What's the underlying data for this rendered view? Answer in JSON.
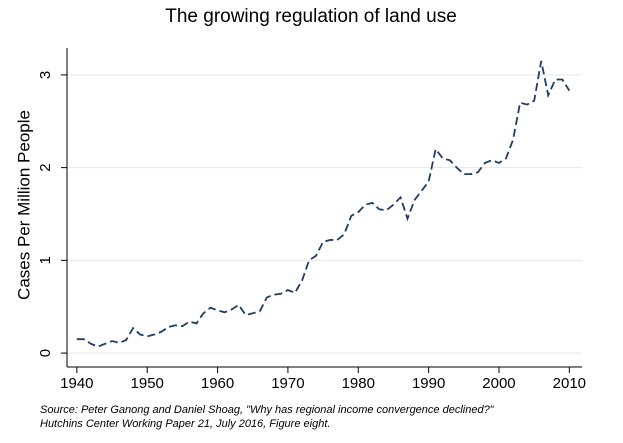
{
  "chart_data": {
    "type": "line",
    "title": "The growing regulation of land use",
    "ylabel": "Cases Per Million People",
    "source": [
      "Source: Peter Ganong and Daniel Shoag, \"Why has regional income convergence declined?\"",
      "Hutchins Center Working Paper 21, July 2016, Figure eight."
    ],
    "x": [
      1940,
      1941,
      1942,
      1943,
      1944,
      1945,
      1946,
      1947,
      1948,
      1949,
      1950,
      1951,
      1952,
      1953,
      1954,
      1955,
      1956,
      1957,
      1958,
      1959,
      1960,
      1961,
      1962,
      1963,
      1964,
      1965,
      1966,
      1967,
      1968,
      1969,
      1970,
      1971,
      1972,
      1973,
      1974,
      1975,
      1976,
      1977,
      1978,
      1979,
      1980,
      1981,
      1982,
      1983,
      1984,
      1985,
      1986,
      1987,
      1988,
      1989,
      1990,
      1991,
      1992,
      1993,
      1994,
      1995,
      1996,
      1997,
      1998,
      1999,
      2000,
      2001,
      2002,
      2003,
      2004,
      2005,
      2006,
      2007,
      2008,
      2009,
      2010
    ],
    "series": [
      {
        "name": "Cases Per Million People",
        "color": "#1f3d66",
        "values": [
          0.15,
          0.15,
          0.1,
          0.07,
          0.1,
          0.13,
          0.11,
          0.14,
          0.27,
          0.2,
          0.18,
          0.2,
          0.23,
          0.28,
          0.3,
          0.29,
          0.34,
          0.32,
          0.43,
          0.49,
          0.46,
          0.44,
          0.47,
          0.52,
          0.41,
          0.43,
          0.45,
          0.6,
          0.63,
          0.64,
          0.68,
          0.65,
          0.78,
          1.0,
          1.05,
          1.2,
          1.22,
          1.22,
          1.28,
          1.48,
          1.52,
          1.6,
          1.62,
          1.55,
          1.54,
          1.6,
          1.68,
          1.45,
          1.65,
          1.75,
          1.85,
          2.2,
          2.1,
          2.08,
          2.0,
          1.93,
          1.93,
          1.95,
          2.05,
          2.08,
          2.05,
          2.1,
          2.3,
          2.7,
          2.68,
          2.72,
          3.15,
          2.78,
          2.95,
          2.95,
          2.83
        ]
      }
    ],
    "xlim": [
      1938.6,
      2011.8
    ],
    "xticks": [
      1940,
      1950,
      1960,
      1970,
      1980,
      1990,
      2000,
      2010
    ],
    "ylim": [
      -0.15,
      3.29
    ],
    "yticks": [
      0,
      1,
      2,
      3
    ],
    "grid": true
  }
}
